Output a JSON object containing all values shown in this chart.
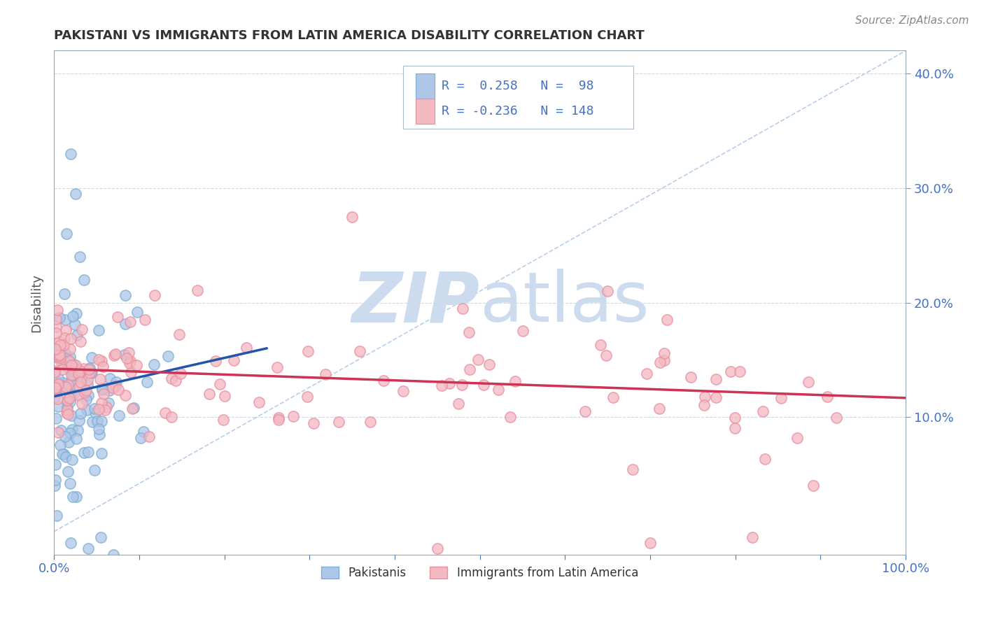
{
  "title": "PAKISTANI VS IMMIGRANTS FROM LATIN AMERICA DISABILITY CORRELATION CHART",
  "source": "Source: ZipAtlas.com",
  "ylabel": "Disability",
  "ylabel_right_ticks": [
    0.1,
    0.2,
    0.3,
    0.4
  ],
  "ylabel_right_labels": [
    "10.0%",
    "20.0%",
    "30.0%",
    "40.0%"
  ],
  "xlim": [
    0.0,
    1.0
  ],
  "ylim": [
    0.0,
    0.42
  ],
  "pakistanis_color": "#aec6e8",
  "pakistanis_edge_color": "#7aafd4",
  "latin_color": "#f4b8c1",
  "latin_edge_color": "#e88fa0",
  "trend_pakistanis_color": "#2255aa",
  "trend_latin_color": "#cc3355",
  "diagonal_color": "#b0c8e8",
  "watermark_zip": "ZIP",
  "watermark_atlas": "atlas",
  "watermark_color": "#ccdcee",
  "background_color": "#ffffff",
  "grid_color": "#d0d8e8",
  "legend_box_color": "#e8eef8",
  "axis_color": "#8899aa",
  "tick_label_color": "#4472c4",
  "title_color": "#333333",
  "source_color": "#888888"
}
